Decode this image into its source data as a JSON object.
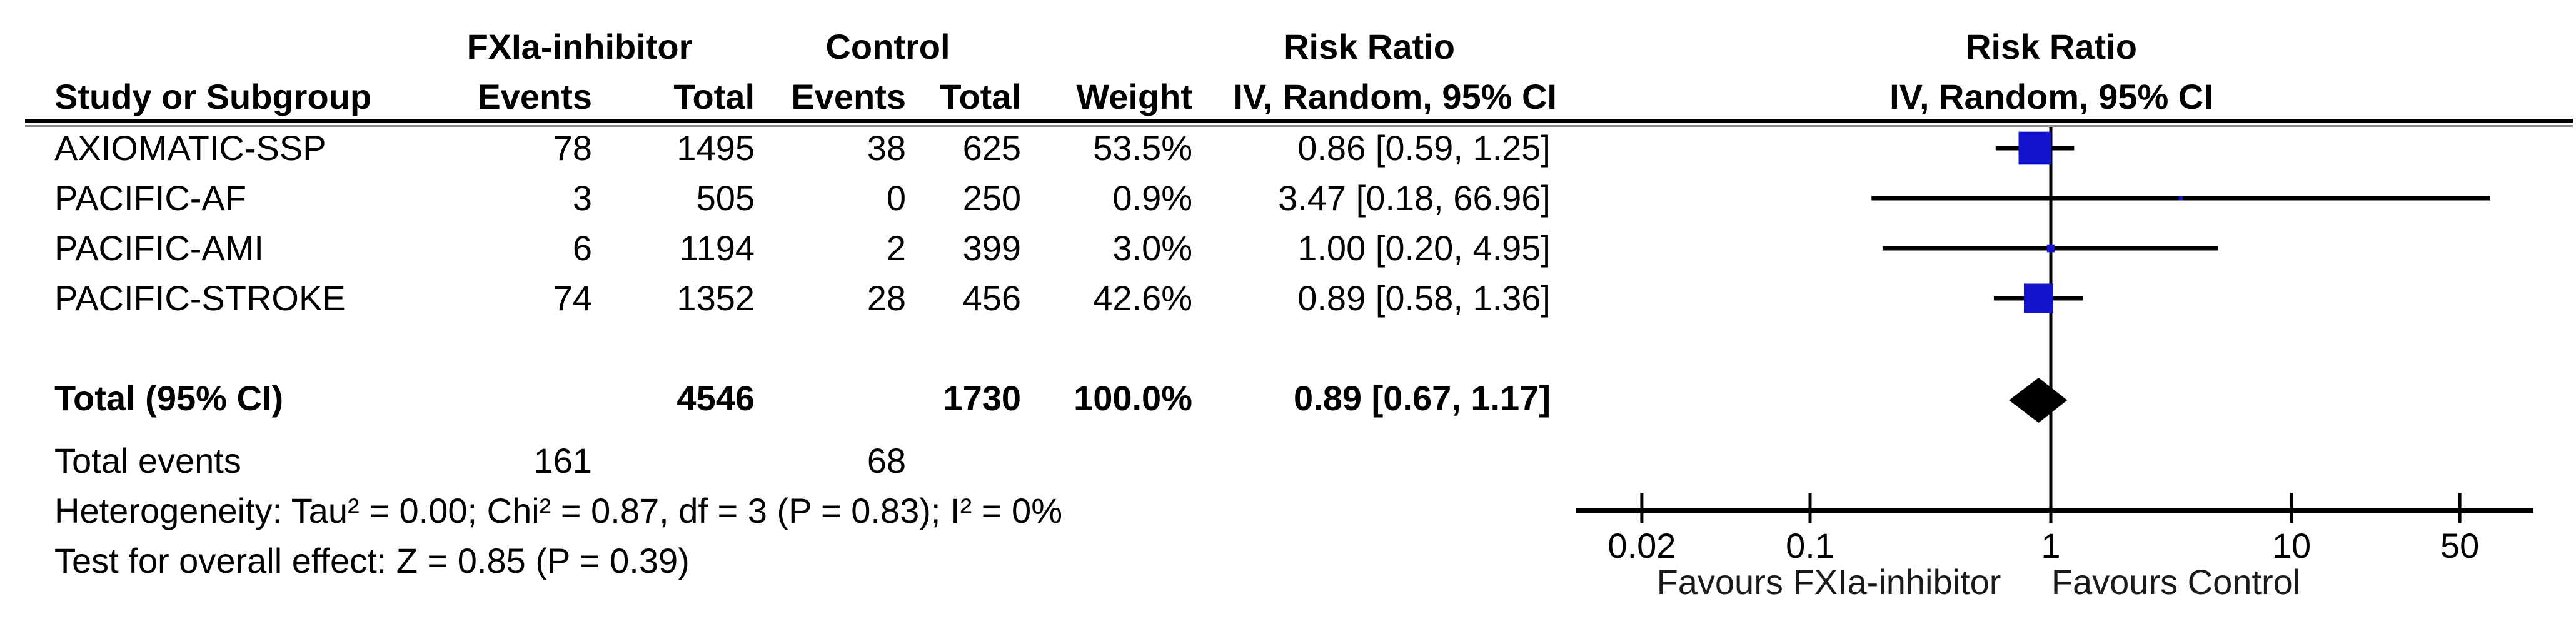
{
  "header": {
    "group1": "FXIa-inhibitor",
    "group2": "Control",
    "risk_ratio_left": "Risk Ratio",
    "risk_ratio_right": "Risk Ratio",
    "method_left": "IV, Random, 95% CI",
    "method_right": "IV, Random, 95% CI",
    "study": "Study or Subgroup",
    "events1": "Events",
    "total1": "Total",
    "events2": "Events",
    "total2": "Total",
    "weight": "Weight"
  },
  "table": {
    "rows": [
      {
        "study": "AXIOMATIC-SSP",
        "events1": "78",
        "total1": "1495",
        "events2": "38",
        "total2": "625",
        "weight": "53.5%",
        "ci": "0.86 [0.59, 1.25]"
      },
      {
        "study": "PACIFIC-AF",
        "events1": "3",
        "total1": "505",
        "events2": "0",
        "total2": "250",
        "weight": "0.9%",
        "ci": "3.47 [0.18, 66.96]"
      },
      {
        "study": "PACIFIC-AMI",
        "events1": "6",
        "total1": "1194",
        "events2": "2",
        "total2": "399",
        "weight": "3.0%",
        "ci": "1.00 [0.20, 4.95]"
      },
      {
        "study": "PACIFIC-STROKE",
        "events1": "74",
        "total1": "1352",
        "events2": "28",
        "total2": "456",
        "weight": "42.6%",
        "ci": "0.89 [0.58, 1.36]"
      }
    ],
    "total_row": {
      "label": "Total (95% CI)",
      "total1": "4546",
      "total2": "1730",
      "weight": "100.0%",
      "ci": "0.89 [0.67, 1.17]"
    },
    "total_events": {
      "label": "Total events",
      "events1": "161",
      "events2": "68"
    },
    "heterogeneity": "Heterogeneity: Tau² = 0.00; Chi² = 0.87, df = 3 (P = 0.83); I² = 0%",
    "overall_effect": "Test for overall effect: Z = 0.85 (P = 0.39)"
  },
  "chart_data": {
    "type": "forest",
    "scale": "log10",
    "axis_ticks": [
      0.02,
      0.1,
      1,
      10,
      50
    ],
    "axis_range": [
      0.0105,
      100
    ],
    "null_line": 1,
    "studies": [
      {
        "name": "AXIOMATIC-SSP",
        "rr": 0.86,
        "ci_low": 0.59,
        "ci_high": 1.25,
        "weight_pct": 53.5
      },
      {
        "name": "PACIFIC-AF",
        "rr": 3.47,
        "ci_low": 0.18,
        "ci_high": 66.96,
        "weight_pct": 0.9
      },
      {
        "name": "PACIFIC-AMI",
        "rr": 1.0,
        "ci_low": 0.2,
        "ci_high": 4.95,
        "weight_pct": 3.0
      },
      {
        "name": "PACIFIC-STROKE",
        "rr": 0.89,
        "ci_low": 0.58,
        "ci_high": 1.36,
        "weight_pct": 42.6
      }
    ],
    "total": {
      "rr": 0.89,
      "ci_low": 0.67,
      "ci_high": 1.17
    },
    "xlabel_left": "Favours FXIa-inhibitor",
    "xlabel_right": "Favours Control",
    "marker_color": "#1414cc",
    "diamond_color": "#000000",
    "line_color": "#000000"
  }
}
